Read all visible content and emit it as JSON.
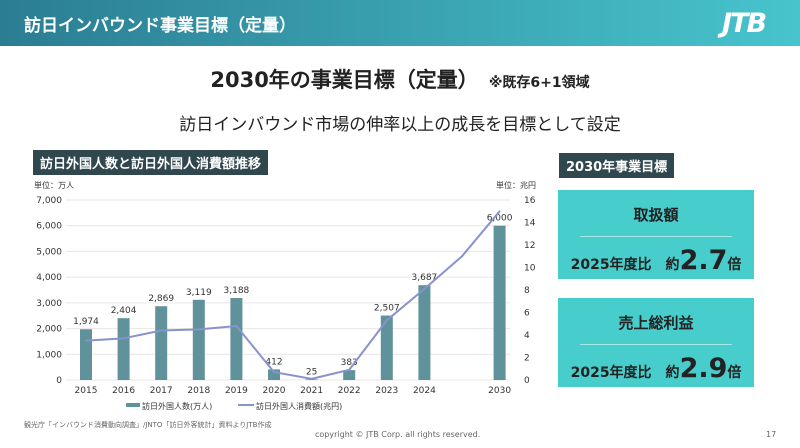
{
  "header": {
    "title": "訪日インバウンド事業目標（定量）",
    "logo": "JTB"
  },
  "main_title": "2030年の事業目標（定量）",
  "main_note": "※既存6+1領域",
  "subtitle": "訪日インバウンド市場の伸率以上の成長を目標として設定",
  "chart_section_title": "訪日外国人数と訪日外国人消費額推移",
  "chart_data": {
    "type": "bar",
    "title": "訪日外国人数と訪日外国人消費額推移",
    "categories": [
      "2015",
      "2016",
      "2017",
      "2018",
      "2019",
      "2020",
      "2021",
      "2022",
      "2023",
      "2024",
      "",
      "2030"
    ],
    "left_unit": "単位：万人",
    "right_unit": "単位：兆円",
    "ylim": [
      0,
      7000
    ],
    "y2lim": [
      0,
      16
    ],
    "yticks": [
      "0",
      "1,000",
      "2,000",
      "3,000",
      "4,000",
      "5,000",
      "6,000",
      "7,000"
    ],
    "y2ticks": [
      "0",
      "2",
      "4",
      "6",
      "8",
      "10",
      "12",
      "14",
      "16"
    ],
    "series": [
      {
        "name": "訪日外国人数(万人)",
        "type": "bar",
        "color": "#5f929b",
        "values": [
          1974,
          2404,
          2869,
          3119,
          3188,
          412,
          25,
          383,
          2507,
          3687,
          null,
          6000
        ],
        "labels": [
          "1,974",
          "2,404",
          "2,869",
          "3,119",
          "3,188",
          "412",
          "25",
          "383",
          "2,507",
          "3,687",
          "",
          "6,000"
        ]
      },
      {
        "name": "訪日外国人消費額(兆円)",
        "type": "line",
        "color": "#8793cc",
        "values": [
          3.5,
          3.7,
          4.4,
          4.5,
          4.8,
          0.7,
          0.1,
          0.9,
          5.3,
          8.1,
          11,
          15
        ]
      }
    ]
  },
  "goals": {
    "title": "2030年事業目標",
    "items": [
      {
        "label": "取扱額",
        "prefix": "2025年度比　約",
        "value": "2.7",
        "suffix": "倍"
      },
      {
        "label": "売上総利益",
        "prefix": "2025年度比　約",
        "value": "2.9",
        "suffix": "倍"
      }
    ]
  },
  "source": "観光庁「インバウンド消費動向調査」/JNTO「訪日外客統計」資料よりJTB作成",
  "copyright": "copyright © JTB Corp. all rights reserved.",
  "page": "17"
}
